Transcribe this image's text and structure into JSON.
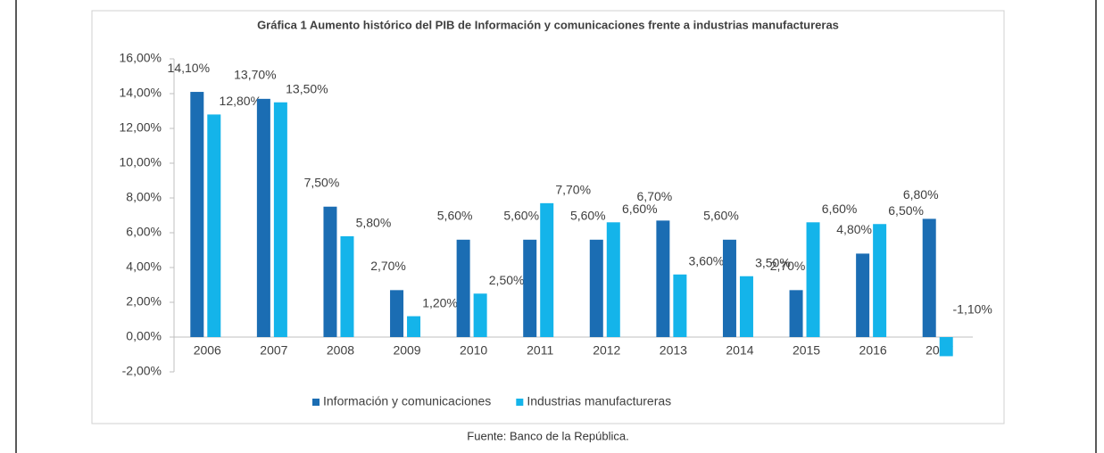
{
  "chart_data": {
    "type": "bar",
    "title": "Gráfica 1 Aumento histórico del PIB de Información y comunicaciones frente a industrias manufactureras",
    "categories": [
      "2006",
      "2007",
      "2008",
      "2009",
      "2010",
      "2011",
      "2012",
      "2013",
      "2014",
      "2015",
      "2016",
      "2017"
    ],
    "series": [
      {
        "name": "Información y comunicaciones",
        "color": "#1b6db3",
        "values": [
          14.1,
          13.7,
          7.5,
          2.7,
          5.6,
          5.6,
          5.6,
          6.7,
          5.6,
          2.7,
          4.8,
          6.8
        ],
        "value_labels": [
          "14,10%",
          "13,70%",
          "7,50%",
          "2,70%",
          "5,60%",
          "5,60%",
          "5,60%",
          "6,70%",
          "5,60%",
          "2,70%",
          "4,80%",
          "6,80%"
        ]
      },
      {
        "name": "Industrias manufactureras",
        "color": "#14b4ea",
        "values": [
          12.8,
          13.5,
          5.8,
          1.2,
          2.5,
          7.7,
          6.6,
          3.6,
          3.5,
          6.6,
          6.5,
          -1.1
        ],
        "value_labels": [
          "12,80%",
          "13,50%",
          "5,80%",
          "1,20%",
          "2,50%",
          "7,70%",
          "6,60%",
          "3,60%",
          "3,50%",
          "6,60%",
          "6,50%",
          "-1,10%"
        ]
      }
    ],
    "ylim": [
      -2,
      16
    ],
    "yticks": [
      {
        "value": -2,
        "label": "-2,00%"
      },
      {
        "value": 0,
        "label": "0,00%"
      },
      {
        "value": 2,
        "label": "2,00%"
      },
      {
        "value": 4,
        "label": "4,00%"
      },
      {
        "value": 6,
        "label": "6,00%"
      },
      {
        "value": 8,
        "label": "8,00%"
      },
      {
        "value": 10,
        "label": "10,00%"
      },
      {
        "value": 12,
        "label": "12,00%"
      },
      {
        "value": 14,
        "label": "14,00%"
      },
      {
        "value": 16,
        "label": "16,00%"
      }
    ],
    "legend": "bottom",
    "source": "Fuente: Banco de la República."
  }
}
